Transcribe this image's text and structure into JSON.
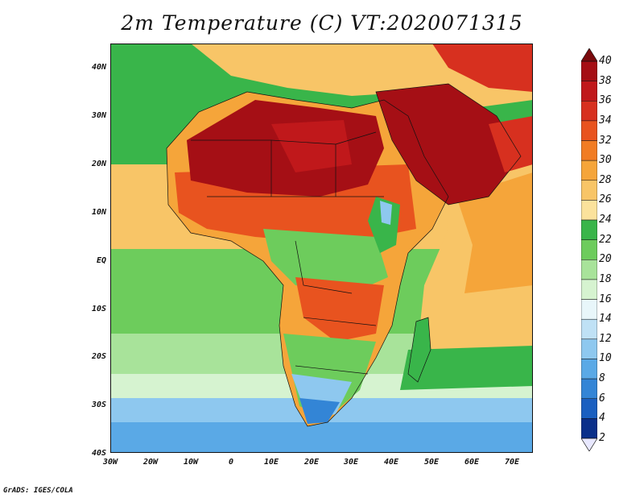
{
  "title": "2m Temperature (C) VT:2020071315",
  "credit": "GrADS: IGES/COLA",
  "lat_labels": [
    "40N",
    "30N",
    "20N",
    "10N",
    "EQ",
    "10S",
    "20S",
    "30S",
    "40S"
  ],
  "lon_labels": [
    "30W",
    "20W",
    "10W",
    "0",
    "10E",
    "20E",
    "30E",
    "40E",
    "50E",
    "60E",
    "70E"
  ],
  "colorbar": {
    "labels": [
      "40",
      "38",
      "36",
      "34",
      "32",
      "30",
      "28",
      "26",
      "24",
      "22",
      "20",
      "18",
      "16",
      "14",
      "12",
      "10",
      "8",
      "6",
      "4",
      "2"
    ],
    "colors": [
      "#a50f15",
      "#c0181b",
      "#d7301f",
      "#e8531f",
      "#f17c23",
      "#f5a53a",
      "#f8c567",
      "#fbe29c",
      "#39b54a",
      "#6dcc5c",
      "#a8e39a",
      "#d6f3d0",
      "#e8f6fa",
      "#bfe1f5",
      "#8ec8ef",
      "#5aa9e6",
      "#3385d6",
      "#1a5fc0",
      "#0a2f8a"
    ],
    "under_color": "#e8e8ff",
    "over_color": "#7a0a0d"
  },
  "regions": {
    "ocean_tropical": "#f8c567",
    "ocean_green": "#39b54a",
    "ocean_south": "#8ec8ef",
    "sahara_hot": "#a50f15",
    "sahel": "#e8531f",
    "central": "#f5a53a",
    "south": "#6dcc5c"
  }
}
